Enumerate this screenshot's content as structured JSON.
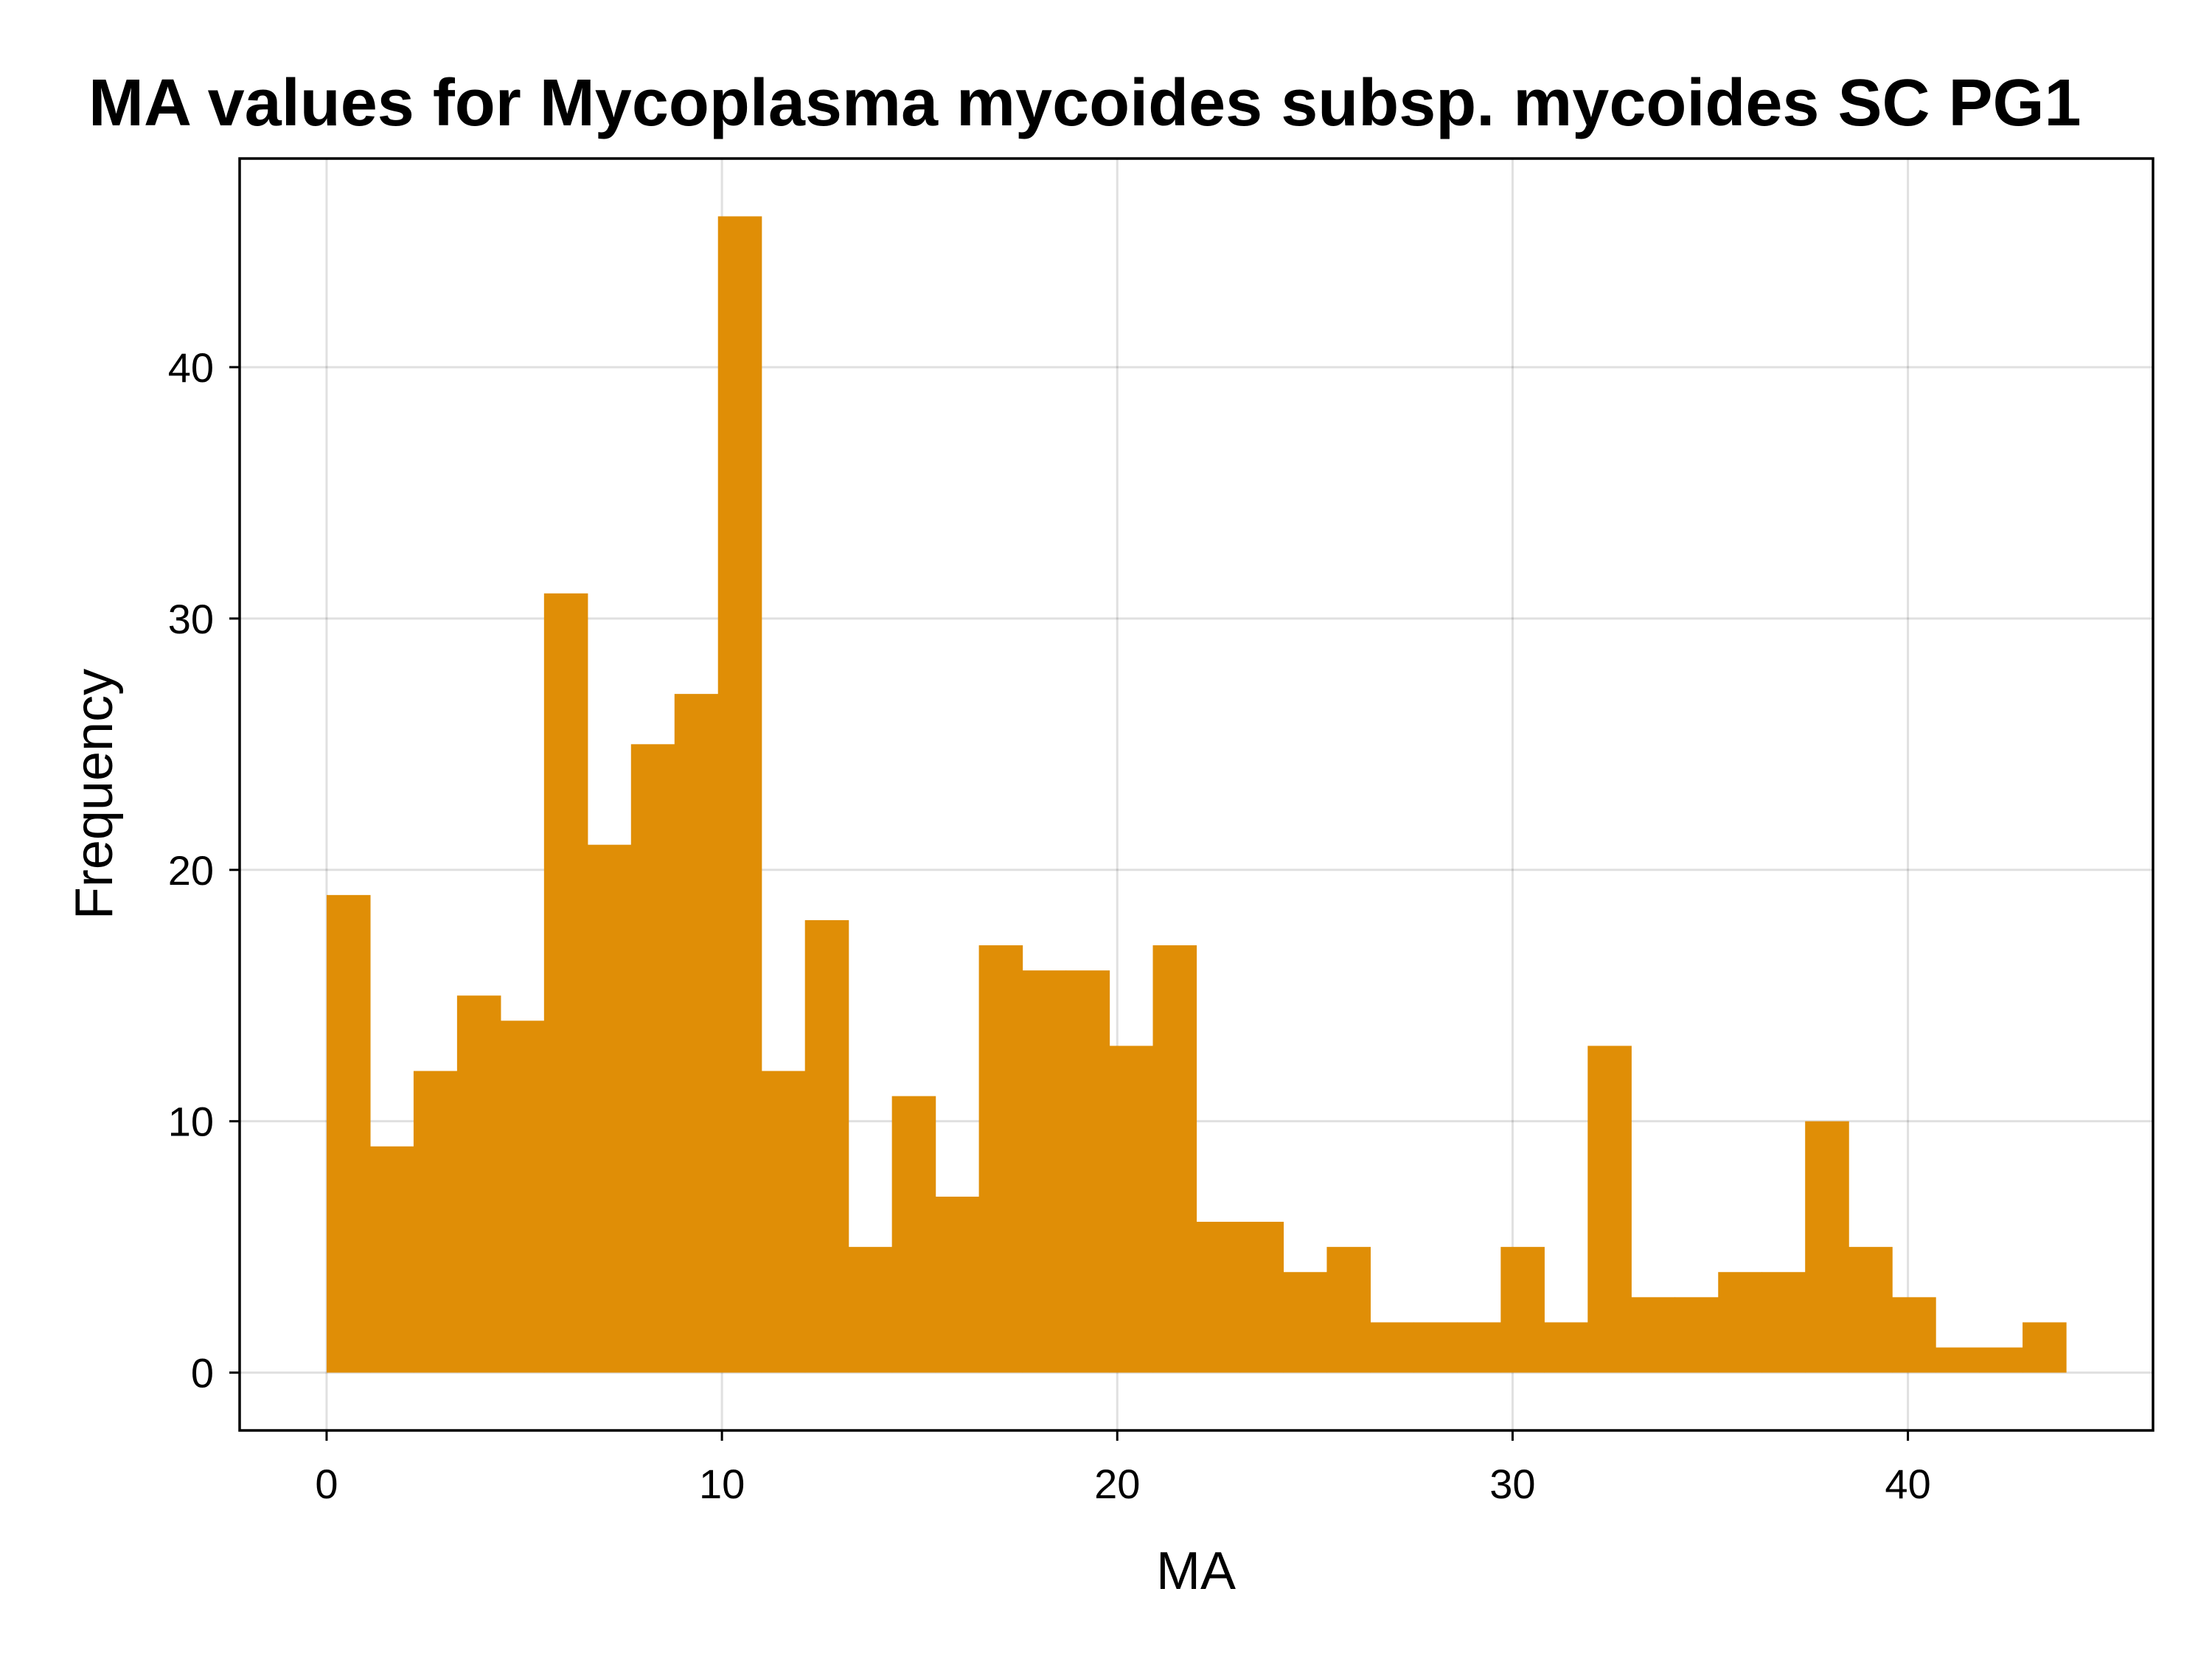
{
  "chart_data": {
    "type": "bar",
    "title": "MA values for Mycoplasma mycoides subsp. mycoides SC PG1",
    "xlabel": "MA",
    "ylabel": "Frequency",
    "bar_color": "#E08E06",
    "grid": true,
    "xlim": [
      -2.2,
      46.2
    ],
    "ylim": [
      -2.3,
      48.3
    ],
    "xticks": [
      0,
      10,
      20,
      30,
      40
    ],
    "xtick_labels": [
      "0",
      "10",
      "20",
      "30",
      "40"
    ],
    "yticks": [
      0,
      10,
      20,
      30,
      40
    ],
    "ytick_labels": [
      "0",
      "10",
      "20",
      "30",
      "40"
    ],
    "bins": [
      {
        "x0": 0.0,
        "x1": 1.1,
        "count": 19
      },
      {
        "x0": 1.1,
        "x1": 2.2,
        "count": 9
      },
      {
        "x0": 2.2,
        "x1": 3.3,
        "count": 12
      },
      {
        "x0": 3.3,
        "x1": 4.4,
        "count": 15
      },
      {
        "x0": 4.4,
        "x1": 5.5,
        "count": 14
      },
      {
        "x0": 5.5,
        "x1": 6.6,
        "count": 31
      },
      {
        "x0": 6.6,
        "x1": 7.7,
        "count": 21
      },
      {
        "x0": 7.7,
        "x1": 8.8,
        "count": 25
      },
      {
        "x0": 8.8,
        "x1": 9.9,
        "count": 27
      },
      {
        "x0": 9.9,
        "x1": 11.0,
        "count": 46
      },
      {
        "x0": 11.0,
        "x1": 12.1,
        "count": 12
      },
      {
        "x0": 12.1,
        "x1": 13.2,
        "count": 18
      },
      {
        "x0": 13.2,
        "x1": 14.3,
        "count": 5
      },
      {
        "x0": 14.3,
        "x1": 15.4,
        "count": 11
      },
      {
        "x0": 15.4,
        "x1": 16.5,
        "count": 7
      },
      {
        "x0": 16.5,
        "x1": 17.6,
        "count": 17
      },
      {
        "x0": 17.6,
        "x1": 18.7,
        "count": 16
      },
      {
        "x0": 18.7,
        "x1": 19.8,
        "count": 16
      },
      {
        "x0": 19.8,
        "x1": 20.9,
        "count": 13
      },
      {
        "x0": 20.9,
        "x1": 22.0,
        "count": 17
      },
      {
        "x0": 22.0,
        "x1": 23.1,
        "count": 6
      },
      {
        "x0": 23.1,
        "x1": 24.2,
        "count": 6
      },
      {
        "x0": 24.2,
        "x1": 25.3,
        "count": 4
      },
      {
        "x0": 25.3,
        "x1": 26.4,
        "count": 5
      },
      {
        "x0": 26.4,
        "x1": 27.5,
        "count": 2
      },
      {
        "x0": 27.5,
        "x1": 28.6,
        "count": 2
      },
      {
        "x0": 28.6,
        "x1": 29.7,
        "count": 2
      },
      {
        "x0": 29.7,
        "x1": 30.8,
        "count": 5
      },
      {
        "x0": 30.8,
        "x1": 31.9,
        "count": 2
      },
      {
        "x0": 31.9,
        "x1": 33.0,
        "count": 13
      },
      {
        "x0": 33.0,
        "x1": 34.1,
        "count": 3
      },
      {
        "x0": 34.1,
        "x1": 35.2,
        "count": 3
      },
      {
        "x0": 35.2,
        "x1": 36.3,
        "count": 4
      },
      {
        "x0": 36.3,
        "x1": 37.4,
        "count": 4
      },
      {
        "x0": 37.4,
        "x1": 38.5,
        "count": 10
      },
      {
        "x0": 38.5,
        "x1": 39.6,
        "count": 5
      },
      {
        "x0": 39.6,
        "x1": 40.7,
        "count": 3
      },
      {
        "x0": 40.7,
        "x1": 41.8,
        "count": 1
      },
      {
        "x0": 41.8,
        "x1": 42.9,
        "count": 1
      },
      {
        "x0": 42.9,
        "x1": 44.0,
        "count": 2
      }
    ]
  }
}
